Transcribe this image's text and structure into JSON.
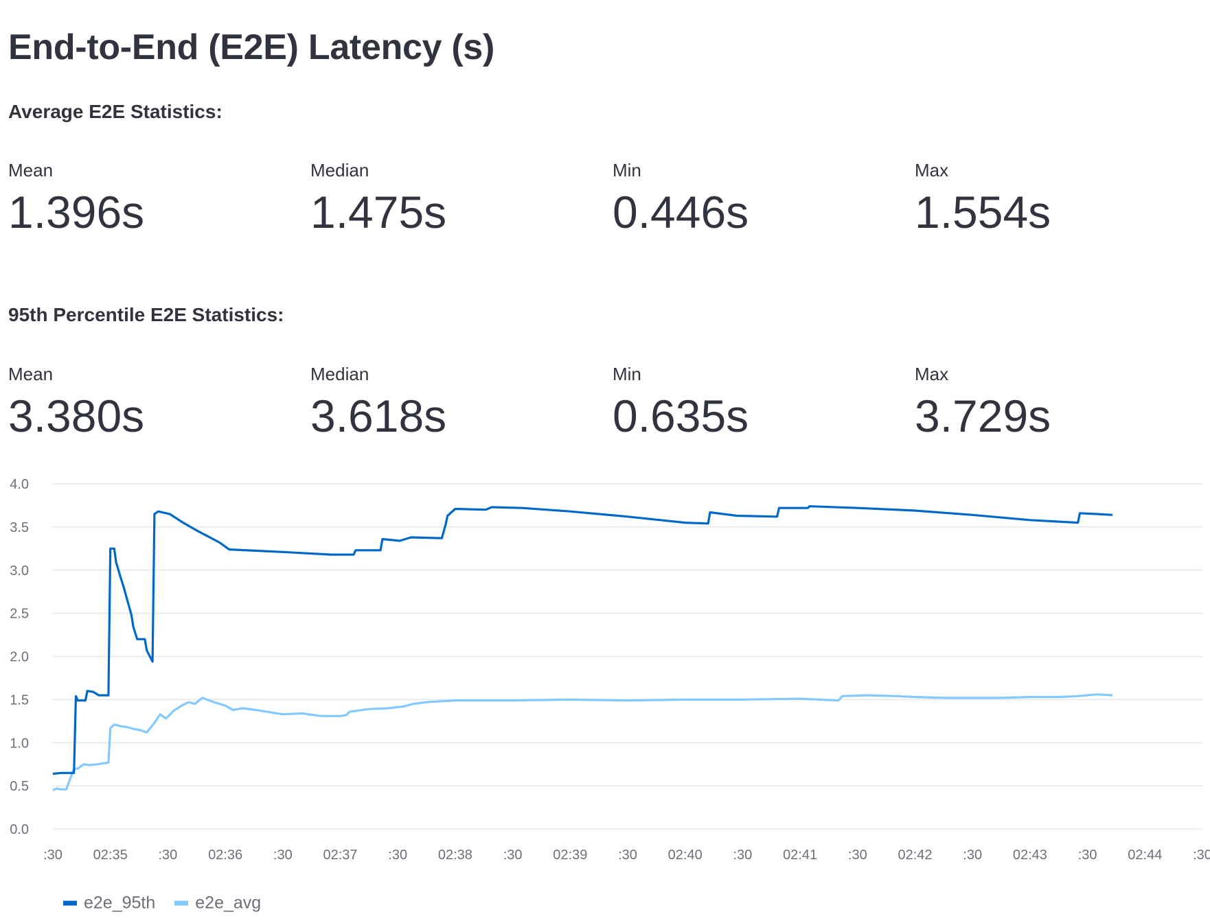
{
  "title": "End-to-End (E2E) Latency (s)",
  "avg_section": {
    "heading": "Average E2E Statistics:",
    "metrics": [
      {
        "label": "Mean",
        "value": "1.396s"
      },
      {
        "label": "Median",
        "value": "1.475s"
      },
      {
        "label": "Min",
        "value": "0.446s"
      },
      {
        "label": "Max",
        "value": "1.554s"
      }
    ]
  },
  "p95_section": {
    "heading": "95th Percentile E2E Statistics:",
    "metrics": [
      {
        "label": "Mean",
        "value": "3.380s"
      },
      {
        "label": "Median",
        "value": "3.618s"
      },
      {
        "label": "Min",
        "value": "0.635s"
      },
      {
        "label": "Max",
        "value": "3.729s"
      }
    ]
  },
  "chart_data": {
    "type": "line",
    "x_axis": "time",
    "x_range": [
      "02:34:30",
      "02:44:30"
    ],
    "x_ticks": [
      ":30",
      "02:35",
      ":30",
      "02:36",
      ":30",
      "02:37",
      ":30",
      "02:38",
      ":30",
      "02:39",
      ":30",
      "02:40",
      ":30",
      "02:41",
      ":30",
      "02:42",
      ":30",
      "02:43",
      ":30",
      "02:44",
      ":30"
    ],
    "y_ticks": [
      "0.0",
      "0.5",
      "1.0",
      "1.5",
      "2.0",
      "2.5",
      "3.0",
      "3.5",
      "4.0"
    ],
    "ylim": [
      0,
      4
    ],
    "grid": true,
    "legend_position": "bottom-left",
    "series": [
      {
        "name": "e2e_95th",
        "color": "#0068c9",
        "points": [
          [
            "02:34:30",
            0.64
          ],
          [
            "02:34:34",
            0.65
          ],
          [
            "02:34:41",
            0.65
          ],
          [
            "02:34:42",
            1.54
          ],
          [
            "02:34:43",
            1.49
          ],
          [
            "02:34:47",
            1.49
          ],
          [
            "02:34:48",
            1.6
          ],
          [
            "02:34:51",
            1.59
          ],
          [
            "02:34:54",
            1.55
          ],
          [
            "02:34:59",
            1.55
          ],
          [
            "02:35:00",
            3.25
          ],
          [
            "02:35:02",
            3.25
          ],
          [
            "02:35:03",
            3.09
          ],
          [
            "02:35:05",
            2.94
          ],
          [
            "02:35:07",
            2.8
          ],
          [
            "02:35:09",
            2.64
          ],
          [
            "02:35:11",
            2.48
          ],
          [
            "02:35:12",
            2.34
          ],
          [
            "02:35:14",
            2.2
          ],
          [
            "02:35:18",
            2.2
          ],
          [
            "02:35:19",
            2.07
          ],
          [
            "02:35:22",
            1.94
          ],
          [
            "02:35:23",
            3.65
          ],
          [
            "02:35:25",
            3.68
          ],
          [
            "02:35:31",
            3.65
          ],
          [
            "02:35:38",
            3.55
          ],
          [
            "02:35:45",
            3.46
          ],
          [
            "02:35:51",
            3.39
          ],
          [
            "02:35:57",
            3.32
          ],
          [
            "02:36:02",
            3.24
          ],
          [
            "02:36:30",
            3.21
          ],
          [
            "02:36:55",
            3.18
          ],
          [
            "02:37:07",
            3.18
          ],
          [
            "02:37:08",
            3.23
          ],
          [
            "02:37:21",
            3.23
          ],
          [
            "02:37:22",
            3.36
          ],
          [
            "02:37:31",
            3.34
          ],
          [
            "02:37:37",
            3.38
          ],
          [
            "02:37:53",
            3.37
          ],
          [
            "02:37:55",
            3.53
          ],
          [
            "02:37:56",
            3.63
          ],
          [
            "02:38:00",
            3.71
          ],
          [
            "02:38:16",
            3.7
          ],
          [
            "02:38:19",
            3.73
          ],
          [
            "02:38:35",
            3.72
          ],
          [
            "02:39:00",
            3.68
          ],
          [
            "02:39:30",
            3.62
          ],
          [
            "02:40:00",
            3.55
          ],
          [
            "02:40:12",
            3.54
          ],
          [
            "02:40:13",
            3.67
          ],
          [
            "02:40:27",
            3.63
          ],
          [
            "02:40:48",
            3.62
          ],
          [
            "02:40:49",
            3.72
          ],
          [
            "02:41:04",
            3.72
          ],
          [
            "02:41:05",
            3.74
          ],
          [
            "02:41:30",
            3.72
          ],
          [
            "02:42:00",
            3.69
          ],
          [
            "02:42:30",
            3.64
          ],
          [
            "02:43:00",
            3.58
          ],
          [
            "02:43:25",
            3.55
          ],
          [
            "02:43:26",
            3.66
          ],
          [
            "02:43:35",
            3.65
          ],
          [
            "02:43:43",
            3.64
          ]
        ]
      },
      {
        "name": "e2e_avg",
        "color": "#83c9ff",
        "points": [
          [
            "02:34:30",
            0.45
          ],
          [
            "02:34:32",
            0.47
          ],
          [
            "02:34:34",
            0.46
          ],
          [
            "02:34:37",
            0.46
          ],
          [
            "02:34:41",
            0.7
          ],
          [
            "02:34:43",
            0.7
          ],
          [
            "02:34:46",
            0.75
          ],
          [
            "02:34:49",
            0.74
          ],
          [
            "02:34:53",
            0.75
          ],
          [
            "02:34:59",
            0.77
          ],
          [
            "02:35:00",
            1.17
          ],
          [
            "02:35:02",
            1.21
          ],
          [
            "02:35:06",
            1.19
          ],
          [
            "02:35:09",
            1.18
          ],
          [
            "02:35:12",
            1.16
          ],
          [
            "02:35:15",
            1.15
          ],
          [
            "02:35:19",
            1.12
          ],
          [
            "02:35:23",
            1.23
          ],
          [
            "02:35:26",
            1.33
          ],
          [
            "02:35:29",
            1.28
          ],
          [
            "02:35:33",
            1.37
          ],
          [
            "02:35:38",
            1.44
          ],
          [
            "02:35:41",
            1.47
          ],
          [
            "02:35:44",
            1.45
          ],
          [
            "02:35:48",
            1.52
          ],
          [
            "02:35:54",
            1.47
          ],
          [
            "02:36:00",
            1.43
          ],
          [
            "02:36:04",
            1.38
          ],
          [
            "02:36:09",
            1.4
          ],
          [
            "02:36:16",
            1.38
          ],
          [
            "02:36:30",
            1.33
          ],
          [
            "02:36:40",
            1.34
          ],
          [
            "02:36:50",
            1.31
          ],
          [
            "02:37:00",
            1.31
          ],
          [
            "02:37:03",
            1.32
          ],
          [
            "02:37:05",
            1.36
          ],
          [
            "02:37:15",
            1.39
          ],
          [
            "02:37:25",
            1.4
          ],
          [
            "02:37:33",
            1.42
          ],
          [
            "02:37:38",
            1.45
          ],
          [
            "02:37:45",
            1.47
          ],
          [
            "02:38:00",
            1.49
          ],
          [
            "02:38:30",
            1.49
          ],
          [
            "02:39:00",
            1.5
          ],
          [
            "02:39:30",
            1.49
          ],
          [
            "02:40:00",
            1.5
          ],
          [
            "02:40:30",
            1.5
          ],
          [
            "02:41:00",
            1.51
          ],
          [
            "02:41:20",
            1.49
          ],
          [
            "02:41:22",
            1.54
          ],
          [
            "02:41:35",
            1.55
          ],
          [
            "02:41:50",
            1.54
          ],
          [
            "02:42:00",
            1.53
          ],
          [
            "02:42:15",
            1.52
          ],
          [
            "02:42:30",
            1.52
          ],
          [
            "02:42:45",
            1.52
          ],
          [
            "02:43:00",
            1.53
          ],
          [
            "02:43:15",
            1.53
          ],
          [
            "02:43:25",
            1.54
          ],
          [
            "02:43:35",
            1.56
          ],
          [
            "02:43:43",
            1.55
          ]
        ]
      }
    ]
  }
}
